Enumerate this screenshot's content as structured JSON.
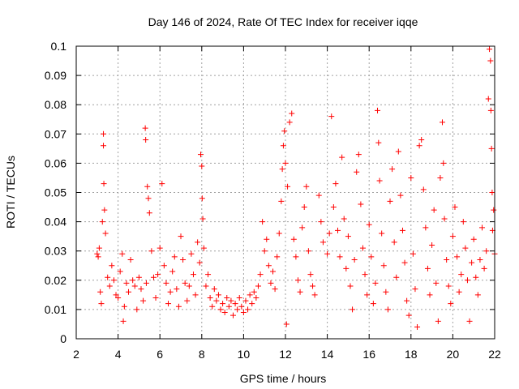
{
  "chart_data": {
    "type": "scatter",
    "title": "Day 146 of 2024, Rate Of TEC Index for receiver iqqe",
    "xlabel": "GPS time / hours",
    "ylabel": "ROTI / TECUs",
    "xlim": [
      2,
      22
    ],
    "ylim": [
      0,
      0.1
    ],
    "x_ticks": [
      2,
      4,
      6,
      8,
      10,
      12,
      14,
      16,
      18,
      20,
      22
    ],
    "y_ticks": [
      0,
      0.01,
      0.02,
      0.03,
      0.04,
      0.05,
      0.06,
      0.07,
      0.08,
      0.09,
      0.1
    ],
    "x_tick_labels": [
      "2",
      "4",
      "6",
      "8",
      "10",
      "12",
      "14",
      "16",
      "18",
      "20",
      "22"
    ],
    "y_tick_labels": [
      "0",
      "0.01",
      "0.02",
      "0.03",
      "0.04",
      "0.05",
      "0.06",
      "0.07",
      "0.08",
      "0.09",
      "0.1"
    ],
    "grid": true,
    "marker": "+",
    "color": "#ff0000",
    "series": [
      {
        "name": "ROTI",
        "points": [
          [
            3.0,
            0.029
          ],
          [
            3.05,
            0.028
          ],
          [
            3.1,
            0.031
          ],
          [
            3.15,
            0.016
          ],
          [
            3.2,
            0.012
          ],
          [
            3.25,
            0.04
          ],
          [
            3.3,
            0.07
          ],
          [
            3.3,
            0.066
          ],
          [
            3.32,
            0.053
          ],
          [
            3.35,
            0.044
          ],
          [
            3.4,
            0.036
          ],
          [
            3.5,
            0.021
          ],
          [
            3.6,
            0.018
          ],
          [
            3.7,
            0.025
          ],
          [
            3.8,
            0.02
          ],
          [
            3.9,
            0.015
          ],
          [
            4.0,
            0.014
          ],
          [
            4.1,
            0.023
          ],
          [
            4.2,
            0.029
          ],
          [
            4.25,
            0.006
          ],
          [
            4.3,
            0.011
          ],
          [
            4.4,
            0.019
          ],
          [
            4.5,
            0.016
          ],
          [
            4.6,
            0.027
          ],
          [
            4.7,
            0.02
          ],
          [
            4.8,
            0.018
          ],
          [
            4.9,
            0.01
          ],
          [
            5.0,
            0.021
          ],
          [
            5.1,
            0.017
          ],
          [
            5.2,
            0.013
          ],
          [
            5.3,
            0.072
          ],
          [
            5.32,
            0.068
          ],
          [
            5.35,
            0.019
          ],
          [
            5.4,
            0.052
          ],
          [
            5.45,
            0.048
          ],
          [
            5.5,
            0.043
          ],
          [
            5.6,
            0.03
          ],
          [
            5.7,
            0.021
          ],
          [
            5.8,
            0.014
          ],
          [
            5.9,
            0.022
          ],
          [
            6.0,
            0.031
          ],
          [
            6.1,
            0.053
          ],
          [
            6.2,
            0.025
          ],
          [
            6.3,
            0.019
          ],
          [
            6.4,
            0.012
          ],
          [
            6.5,
            0.016
          ],
          [
            6.6,
            0.023
          ],
          [
            6.7,
            0.028
          ],
          [
            6.8,
            0.017
          ],
          [
            6.9,
            0.011
          ],
          [
            7.0,
            0.035
          ],
          [
            7.1,
            0.027
          ],
          [
            7.2,
            0.019
          ],
          [
            7.3,
            0.013
          ],
          [
            7.4,
            0.018
          ],
          [
            7.5,
            0.029
          ],
          [
            7.6,
            0.022
          ],
          [
            7.7,
            0.015
          ],
          [
            7.8,
            0.033
          ],
          [
            7.9,
            0.026
          ],
          [
            7.95,
            0.063
          ],
          [
            8.0,
            0.059
          ],
          [
            8.02,
            0.048
          ],
          [
            8.05,
            0.041
          ],
          [
            8.1,
            0.031
          ],
          [
            8.2,
            0.018
          ],
          [
            8.3,
            0.022
          ],
          [
            8.4,
            0.014
          ],
          [
            8.5,
            0.011
          ],
          [
            8.6,
            0.017
          ],
          [
            8.7,
            0.013
          ],
          [
            8.8,
            0.015
          ],
          [
            8.9,
            0.01
          ],
          [
            9.0,
            0.012
          ],
          [
            9.1,
            0.009
          ],
          [
            9.2,
            0.014
          ],
          [
            9.3,
            0.011
          ],
          [
            9.4,
            0.013
          ],
          [
            9.5,
            0.008
          ],
          [
            9.6,
            0.012
          ],
          [
            9.7,
            0.01
          ],
          [
            9.8,
            0.014
          ],
          [
            9.9,
            0.011
          ],
          [
            10.0,
            0.009
          ],
          [
            10.1,
            0.013
          ],
          [
            10.2,
            0.01
          ],
          [
            10.3,
            0.015
          ],
          [
            10.4,
            0.012
          ],
          [
            10.5,
            0.016
          ],
          [
            10.6,
            0.014
          ],
          [
            10.7,
            0.018
          ],
          [
            10.8,
            0.022
          ],
          [
            10.9,
            0.04
          ],
          [
            11.0,
            0.03
          ],
          [
            11.1,
            0.034
          ],
          [
            11.2,
            0.025
          ],
          [
            11.3,
            0.019
          ],
          [
            11.4,
            0.023
          ],
          [
            11.5,
            0.017
          ],
          [
            11.6,
            0.028
          ],
          [
            11.7,
            0.036
          ],
          [
            11.8,
            0.047
          ],
          [
            11.85,
            0.058
          ],
          [
            11.9,
            0.066
          ],
          [
            11.95,
            0.071
          ],
          [
            12.0,
            0.06
          ],
          [
            12.05,
            0.005
          ],
          [
            12.1,
            0.052
          ],
          [
            12.2,
            0.074
          ],
          [
            12.3,
            0.077
          ],
          [
            12.4,
            0.034
          ],
          [
            12.5,
            0.028
          ],
          [
            12.6,
            0.02
          ],
          [
            12.7,
            0.016
          ],
          [
            12.8,
            0.038
          ],
          [
            12.9,
            0.045
          ],
          [
            13.0,
            0.052
          ],
          [
            13.1,
            0.03
          ],
          [
            13.2,
            0.022
          ],
          [
            13.3,
            0.018
          ],
          [
            13.4,
            0.015
          ],
          [
            13.6,
            0.049
          ],
          [
            13.7,
            0.04
          ],
          [
            13.8,
            0.033
          ],
          [
            14.0,
            0.029
          ],
          [
            14.1,
            0.036
          ],
          [
            14.2,
            0.076
          ],
          [
            14.3,
            0.045
          ],
          [
            14.4,
            0.053
          ],
          [
            14.5,
            0.037
          ],
          [
            14.6,
            0.028
          ],
          [
            14.7,
            0.062
          ],
          [
            14.8,
            0.041
          ],
          [
            14.9,
            0.024
          ],
          [
            15.0,
            0.035
          ],
          [
            15.1,
            0.018
          ],
          [
            15.2,
            0.01
          ],
          [
            15.3,
            0.027
          ],
          [
            15.4,
            0.057
          ],
          [
            15.5,
            0.063
          ],
          [
            15.6,
            0.046
          ],
          [
            15.7,
            0.031
          ],
          [
            15.8,
            0.022
          ],
          [
            15.9,
            0.015
          ],
          [
            16.0,
            0.039
          ],
          [
            16.1,
            0.028
          ],
          [
            16.2,
            0.012
          ],
          [
            16.3,
            0.019
          ],
          [
            16.4,
            0.078
          ],
          [
            16.45,
            0.067
          ],
          [
            16.5,
            0.054
          ],
          [
            16.6,
            0.036
          ],
          [
            16.7,
            0.025
          ],
          [
            16.8,
            0.016
          ],
          [
            16.9,
            0.01
          ],
          [
            17.0,
            0.047
          ],
          [
            17.1,
            0.058
          ],
          [
            17.2,
            0.033
          ],
          [
            17.3,
            0.021
          ],
          [
            17.4,
            0.064
          ],
          [
            17.5,
            0.049
          ],
          [
            17.6,
            0.037
          ],
          [
            17.7,
            0.026
          ],
          [
            17.8,
            0.013
          ],
          [
            17.9,
            0.008
          ],
          [
            18.0,
            0.055
          ],
          [
            18.1,
            0.029
          ],
          [
            18.2,
            0.017
          ],
          [
            18.3,
            0.004
          ],
          [
            18.4,
            0.066
          ],
          [
            18.5,
            0.068
          ],
          [
            18.6,
            0.051
          ],
          [
            18.7,
            0.038
          ],
          [
            18.8,
            0.024
          ],
          [
            18.9,
            0.015
          ],
          [
            19.0,
            0.032
          ],
          [
            19.1,
            0.044
          ],
          [
            19.2,
            0.019
          ],
          [
            19.3,
            0.006
          ],
          [
            19.4,
            0.055
          ],
          [
            19.5,
            0.074
          ],
          [
            19.55,
            0.06
          ],
          [
            19.6,
            0.041
          ],
          [
            19.7,
            0.027
          ],
          [
            19.8,
            0.018
          ],
          [
            19.9,
            0.012
          ],
          [
            20.0,
            0.035
          ],
          [
            20.1,
            0.045
          ],
          [
            20.2,
            0.028
          ],
          [
            20.3,
            0.016
          ],
          [
            20.4,
            0.022
          ],
          [
            20.5,
            0.04
          ],
          [
            20.6,
            0.031
          ],
          [
            20.7,
            0.02
          ],
          [
            20.8,
            0.006
          ],
          [
            20.9,
            0.026
          ],
          [
            21.0,
            0.034
          ],
          [
            21.1,
            0.021
          ],
          [
            21.2,
            0.015
          ],
          [
            21.3,
            0.027
          ],
          [
            21.4,
            0.038
          ],
          [
            21.5,
            0.024
          ],
          [
            21.6,
            0.03
          ],
          [
            21.7,
            0.082
          ],
          [
            21.75,
            0.099
          ],
          [
            21.8,
            0.095
          ],
          [
            21.82,
            0.078
          ],
          [
            21.85,
            0.065
          ],
          [
            21.88,
            0.05
          ],
          [
            21.9,
            0.037
          ],
          [
            21.95,
            0.044
          ],
          [
            22.0,
            0.029
          ]
        ]
      }
    ]
  }
}
